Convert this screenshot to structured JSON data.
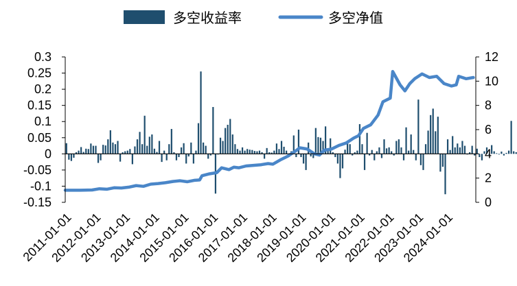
{
  "chart_data": {
    "type": "bar+line",
    "title": "",
    "legend": {
      "placement": "top",
      "items": [
        {
          "label": "多空收益率",
          "kind": "bar",
          "color": "#1f4e6e"
        },
        {
          "label": "多空净值",
          "kind": "line",
          "color": "#4a86c8"
        }
      ]
    },
    "x_tick_labels": [
      "2011-01-01",
      "2012-01-01",
      "2013-01-01",
      "2014-01-01",
      "2015-01-01",
      "2016-01-01",
      "2017-01-01",
      "2018-01-01",
      "2019-01-01",
      "2020-01-01",
      "2021-01-01",
      "2022-01-01",
      "2023-01-01",
      "2024-01-01"
    ],
    "x_range": [
      "2011-01",
      "2024-12"
    ],
    "y_left": {
      "range": [
        -0.15,
        0.3
      ],
      "ticks": [
        -0.15,
        -0.1,
        -0.05,
        0,
        0.05,
        0.1,
        0.15,
        0.2,
        0.25,
        0.3
      ],
      "tick_labels": [
        "-0.15",
        "-0.1",
        "-0.05",
        "0",
        "0.05",
        "0.1",
        "0.15",
        "0.2",
        "0.25",
        "0.3"
      ]
    },
    "y_right": {
      "range": [
        0,
        12
      ],
      "ticks": [
        0,
        2,
        4,
        6,
        8,
        10,
        12
      ],
      "tick_labels": [
        "0",
        "2",
        "4",
        "6",
        "8",
        "10",
        "12"
      ]
    },
    "grid": false,
    "series": [
      {
        "name": "多空收益率",
        "type": "bar",
        "axis": "left",
        "color": "#1f4e6e",
        "x_start": "2011-01",
        "frequency": "monthly",
        "values": [
          0.033,
          -0.018,
          -0.022,
          -0.012,
          0.005,
          0.01,
          0.021,
          0.006,
          0.016,
          0.015,
          0.032,
          0.025,
          0.025,
          -0.028,
          -0.02,
          0.028,
          0.026,
          0.045,
          0.073,
          0.035,
          0.03,
          0.04,
          -0.024,
          0.005,
          0.008,
          0.01,
          0.015,
          -0.032,
          0.023,
          0.045,
          0.068,
          0.03,
          0.118,
          0.025,
          0.053,
          0.06,
          0.016,
          0.006,
          0.04,
          -0.025,
          0.01,
          -0.02,
          0.03,
          0.077,
          0.005,
          -0.02,
          -0.01,
          0.02,
          0.033,
          -0.03,
          -0.008,
          0.035,
          -0.03,
          0.01,
          0.095,
          0.255,
          0.035,
          0.025,
          -0.015,
          -0.005,
          0.145,
          -0.123,
          -0.002,
          0.05,
          0.04,
          0.08,
          0.09,
          0.108,
          0.06,
          0.03,
          0.015,
          0.01,
          0.02,
          0.01,
          0.015,
          0.013,
          0.012,
          0.009,
          0.008,
          0.01,
          0.005,
          -0.015,
          0.018,
          0.005,
          0.004,
          0.01,
          0.032,
          0.015,
          0.04,
          0.022,
          0.01,
          -0.01,
          0.008,
          0.057,
          -0.01,
          0.075,
          -0.01,
          -0.03,
          -0.05,
          0.035,
          -0.008,
          -0.013,
          0.08,
          0.052,
          0.05,
          0.04,
          0.085,
          0.01,
          0.048,
          0.005,
          -0.01,
          -0.03,
          -0.075,
          -0.045,
          0.013,
          0.04,
          0.03,
          -0.005,
          0.005,
          0.01,
          0.092,
          0.03,
          -0.05,
          0.065,
          -0.005,
          0.012,
          -0.02,
          0.008,
          0.02,
          -0.013,
          0.045,
          0.017,
          0.02,
          0.008,
          -0.005,
          0.04,
          0.045,
          0.02,
          -0.02,
          0.082,
          0.01,
          0.06,
          0.012,
          -0.02,
          0.168,
          -0.035,
          -0.05,
          0.03,
          0.072,
          0.12,
          0.14,
          0.07,
          0.115,
          -0.055,
          -0.04,
          -0.125,
          0.045,
          0.012,
          0.055,
          0.02,
          0.032,
          0.02,
          0.04,
          0.025,
          -0.002,
          0.005,
          0.025,
          -0.005,
          0.016,
          -0.01,
          -0.02,
          0.008,
          0.02,
          -0.003,
          0.027,
          0.008,
          0.002,
          -0.002,
          0.007,
          -0.005,
          0.003,
          0.01,
          0.102,
          0.008,
          0.005,
          -0.01,
          0.045,
          0.015,
          -0.05,
          0.057,
          -0.03,
          0.028
        ]
      },
      {
        "name": "多空净值",
        "type": "line",
        "axis": "right",
        "color": "#4a86c8",
        "points": [
          [
            "2011-01",
            1.0
          ],
          [
            "2011-07",
            1.0
          ],
          [
            "2011-12",
            1.02
          ],
          [
            "2012-03",
            1.12
          ],
          [
            "2012-06",
            1.08
          ],
          [
            "2012-09",
            1.2
          ],
          [
            "2012-12",
            1.18
          ],
          [
            "2013-03",
            1.25
          ],
          [
            "2013-06",
            1.38
          ],
          [
            "2013-09",
            1.32
          ],
          [
            "2013-12",
            1.5
          ],
          [
            "2014-03",
            1.55
          ],
          [
            "2014-06",
            1.62
          ],
          [
            "2014-09",
            1.72
          ],
          [
            "2014-12",
            1.78
          ],
          [
            "2015-03",
            1.7
          ],
          [
            "2015-06",
            1.82
          ],
          [
            "2015-08",
            1.85
          ],
          [
            "2015-09",
            2.2
          ],
          [
            "2015-12",
            2.35
          ],
          [
            "2016-03",
            2.45
          ],
          [
            "2016-05",
            2.85
          ],
          [
            "2016-08",
            2.7
          ],
          [
            "2016-10",
            2.9
          ],
          [
            "2016-12",
            2.85
          ],
          [
            "2017-03",
            3.0
          ],
          [
            "2017-06",
            3.05
          ],
          [
            "2017-09",
            3.1
          ],
          [
            "2017-12",
            3.2
          ],
          [
            "2018-02",
            3.15
          ],
          [
            "2018-05",
            3.5
          ],
          [
            "2018-08",
            3.8
          ],
          [
            "2018-11",
            4.2
          ],
          [
            "2019-01",
            4.5
          ],
          [
            "2019-04",
            4.4
          ],
          [
            "2019-07",
            4.0
          ],
          [
            "2019-09",
            3.9
          ],
          [
            "2019-11",
            4.3
          ],
          [
            "2020-02",
            4.4
          ],
          [
            "2020-05",
            4.7
          ],
          [
            "2020-08",
            4.9
          ],
          [
            "2020-11",
            5.3
          ],
          [
            "2021-01",
            5.5
          ],
          [
            "2021-03",
            6.1
          ],
          [
            "2021-06",
            6.4
          ],
          [
            "2021-09",
            7.2
          ],
          [
            "2021-11",
            8.3
          ],
          [
            "2022-02",
            8.6
          ],
          [
            "2022-03",
            10.8
          ],
          [
            "2022-06",
            9.7
          ],
          [
            "2022-08",
            9.2
          ],
          [
            "2022-10",
            9.8
          ],
          [
            "2022-12",
            10.2
          ],
          [
            "2023-03",
            10.6
          ],
          [
            "2023-06",
            10.3
          ],
          [
            "2023-09",
            10.4
          ],
          [
            "2023-12",
            9.8
          ],
          [
            "2024-03",
            9.6
          ],
          [
            "2024-05",
            9.7
          ],
          [
            "2024-06",
            10.4
          ],
          [
            "2024-09",
            10.2
          ],
          [
            "2024-12",
            10.3
          ]
        ]
      }
    ]
  }
}
